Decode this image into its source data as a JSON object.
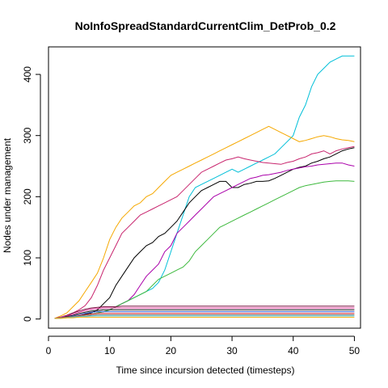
{
  "chart_data": {
    "type": "line",
    "title": "NoInfoSpreadStandardCurrentClim_DetProb_0.2",
    "xlabel": "Time since incursion detected (timesteps)",
    "ylabel": "Nodes under management",
    "xlim": [
      0,
      51
    ],
    "ylim": [
      -15,
      445
    ],
    "xticks": [
      0,
      10,
      20,
      30,
      40,
      50
    ],
    "yticks": [
      0,
      100,
      200,
      300,
      400
    ],
    "grid": false,
    "legend": "none",
    "x": [
      1,
      2,
      3,
      4,
      5,
      6,
      7,
      8,
      9,
      10,
      11,
      12,
      13,
      14,
      15,
      16,
      17,
      18,
      19,
      20,
      21,
      22,
      23,
      24,
      25,
      26,
      27,
      28,
      29,
      30,
      31,
      32,
      33,
      34,
      35,
      36,
      37,
      38,
      39,
      40,
      41,
      42,
      43,
      44,
      45,
      46,
      47,
      48,
      49,
      50
    ],
    "series": [
      {
        "color": "#00BFD8",
        "values": [
          1,
          2,
          3,
          4,
          5,
          6,
          8,
          10,
          12,
          15,
          20,
          25,
          30,
          35,
          40,
          45,
          50,
          60,
          80,
          110,
          140,
          170,
          200,
          215,
          220,
          225,
          230,
          235,
          240,
          245,
          240,
          245,
          250,
          255,
          260,
          265,
          270,
          280,
          290,
          300,
          330,
          350,
          380,
          400,
          410,
          420,
          425,
          430,
          430,
          430
        ]
      },
      {
        "color": "#F5A800",
        "values": [
          1,
          5,
          10,
          20,
          30,
          45,
          60,
          75,
          100,
          130,
          150,
          165,
          175,
          185,
          190,
          200,
          205,
          215,
          225,
          235,
          240,
          245,
          250,
          255,
          260,
          265,
          270,
          275,
          280,
          285,
          290,
          295,
          300,
          305,
          310,
          315,
          310,
          305,
          300,
          295,
          290,
          292,
          295,
          298,
          300,
          298,
          295,
          293,
          292,
          290
        ]
      },
      {
        "color": "#C8256E",
        "values": [
          1,
          3,
          6,
          10,
          15,
          22,
          35,
          55,
          80,
          100,
          120,
          140,
          150,
          160,
          170,
          175,
          180,
          185,
          190,
          195,
          200,
          210,
          220,
          230,
          240,
          245,
          250,
          255,
          260,
          262,
          265,
          262,
          260,
          258,
          256,
          255,
          254,
          253,
          256,
          258,
          262,
          265,
          270,
          272,
          275,
          270,
          275,
          278,
          280,
          282
        ]
      },
      {
        "color": "#000000",
        "values": [
          1,
          2,
          3,
          4,
          5,
          8,
          10,
          15,
          25,
          35,
          55,
          70,
          85,
          100,
          110,
          120,
          125,
          135,
          140,
          150,
          160,
          175,
          190,
          200,
          210,
          215,
          220,
          225,
          225,
          215,
          215,
          220,
          222,
          225,
          225,
          226,
          230,
          235,
          240,
          245,
          248,
          250,
          255,
          258,
          262,
          265,
          270,
          275,
          278,
          280
        ]
      },
      {
        "color": "#AA00AA",
        "values": [
          1,
          2,
          3,
          4,
          5,
          6,
          8,
          10,
          12,
          15,
          20,
          25,
          30,
          40,
          55,
          70,
          80,
          90,
          110,
          120,
          140,
          150,
          160,
          170,
          180,
          190,
          200,
          205,
          210,
          215,
          220,
          225,
          230,
          232,
          235,
          236,
          238,
          240,
          243,
          245,
          247,
          249,
          250,
          252,
          253,
          254,
          255,
          255,
          252,
          250
        ]
      },
      {
        "color": "#3DB93D",
        "values": [
          1,
          2,
          3,
          4,
          5,
          6,
          8,
          10,
          12,
          15,
          20,
          25,
          30,
          35,
          40,
          45,
          55,
          65,
          70,
          75,
          80,
          85,
          95,
          110,
          120,
          130,
          140,
          150,
          155,
          160,
          165,
          170,
          175,
          180,
          185,
          190,
          195,
          200,
          205,
          210,
          215,
          218,
          220,
          222,
          224,
          225,
          226,
          226,
          226,
          225
        ]
      },
      {
        "color": "#7A1040",
        "values": [
          1,
          3,
          6,
          10,
          13,
          16,
          18,
          19,
          20,
          20,
          20,
          21,
          21,
          21,
          21,
          21,
          21,
          21,
          21,
          21,
          21,
          21,
          21,
          21,
          21,
          21,
          21,
          21,
          21,
          21,
          21,
          21,
          21,
          21,
          21,
          21,
          21,
          21,
          21,
          21,
          21,
          21,
          21,
          21,
          21,
          21,
          21,
          21,
          21,
          21
        ]
      },
      {
        "color": "#E0309A",
        "values": [
          1,
          3,
          5,
          8,
          11,
          14,
          16,
          17,
          18,
          18,
          18,
          18,
          18,
          18,
          18,
          18,
          18,
          18,
          18,
          18,
          18,
          18,
          18,
          18,
          18,
          18,
          18,
          18,
          18,
          18,
          18,
          18,
          18,
          18,
          18,
          18,
          18,
          18,
          18,
          18,
          18,
          18,
          18,
          18,
          18,
          18,
          18,
          18,
          18,
          18
        ]
      },
      {
        "color": "#111111",
        "values": [
          1,
          2,
          4,
          6,
          9,
          11,
          13,
          14,
          15,
          15,
          15,
          15,
          15,
          15,
          15,
          15,
          15,
          15,
          15,
          15,
          15,
          15,
          15,
          15,
          15,
          15,
          15,
          15,
          15,
          15,
          15,
          15,
          15,
          15,
          15,
          15,
          15,
          15,
          15,
          15,
          15,
          15,
          15,
          15,
          15,
          15,
          15,
          15,
          15,
          15
        ]
      },
      {
        "color": "#3060D0",
        "values": [
          1,
          2,
          3,
          5,
          7,
          9,
          11,
          12,
          12,
          12,
          12,
          12,
          12,
          12,
          12,
          12,
          12,
          12,
          12,
          12,
          12,
          12,
          12,
          12,
          12,
          12,
          12,
          12,
          12,
          12,
          12,
          12,
          12,
          12,
          12,
          12,
          12,
          12,
          12,
          12,
          12,
          12,
          12,
          12,
          12,
          12,
          12,
          12,
          12,
          12
        ]
      },
      {
        "color": "#E53030",
        "values": [
          1,
          2,
          3,
          4,
          6,
          7,
          8,
          9,
          9,
          9,
          9,
          9,
          9,
          9,
          9,
          9,
          9,
          9,
          9,
          9,
          9,
          9,
          9,
          9,
          9,
          9,
          9,
          9,
          9,
          9,
          9,
          9,
          9,
          9,
          9,
          9,
          9,
          9,
          9,
          9,
          9,
          9,
          9,
          9,
          9,
          9,
          9,
          9,
          9,
          9
        ]
      },
      {
        "color": "#777777",
        "values": [
          1,
          2,
          3,
          4,
          5,
          6,
          6,
          7,
          7,
          7,
          7,
          7,
          7,
          7,
          7,
          7,
          7,
          7,
          7,
          7,
          7,
          7,
          7,
          7,
          7,
          7,
          7,
          7,
          7,
          7,
          7,
          7,
          7,
          7,
          7,
          7,
          7,
          7,
          7,
          7,
          7,
          7,
          7,
          7,
          7,
          7,
          7,
          7,
          7,
          7
        ]
      },
      {
        "color": "#40C8E0",
        "values": [
          1,
          1,
          2,
          3,
          4,
          4,
          5,
          5,
          5,
          5,
          5,
          5,
          5,
          5,
          5,
          5,
          5,
          5,
          5,
          5,
          5,
          5,
          5,
          5,
          5,
          5,
          5,
          5,
          5,
          5,
          5,
          5,
          5,
          5,
          5,
          5,
          5,
          5,
          5,
          5,
          5,
          5,
          5,
          5,
          5,
          5,
          5,
          5,
          5,
          5
        ]
      },
      {
        "color": "#F5A800",
        "values": [
          1,
          1,
          2,
          2,
          3,
          3,
          3,
          3,
          3,
          3,
          3,
          3,
          3,
          3,
          3,
          3,
          3,
          3,
          3,
          3,
          3,
          3,
          3,
          3,
          3,
          3,
          3,
          3,
          3,
          3,
          3,
          3,
          3,
          3,
          3,
          3,
          3,
          3,
          3,
          3,
          3,
          3,
          3,
          3,
          3,
          3,
          3,
          3,
          3,
          3
        ]
      }
    ]
  }
}
